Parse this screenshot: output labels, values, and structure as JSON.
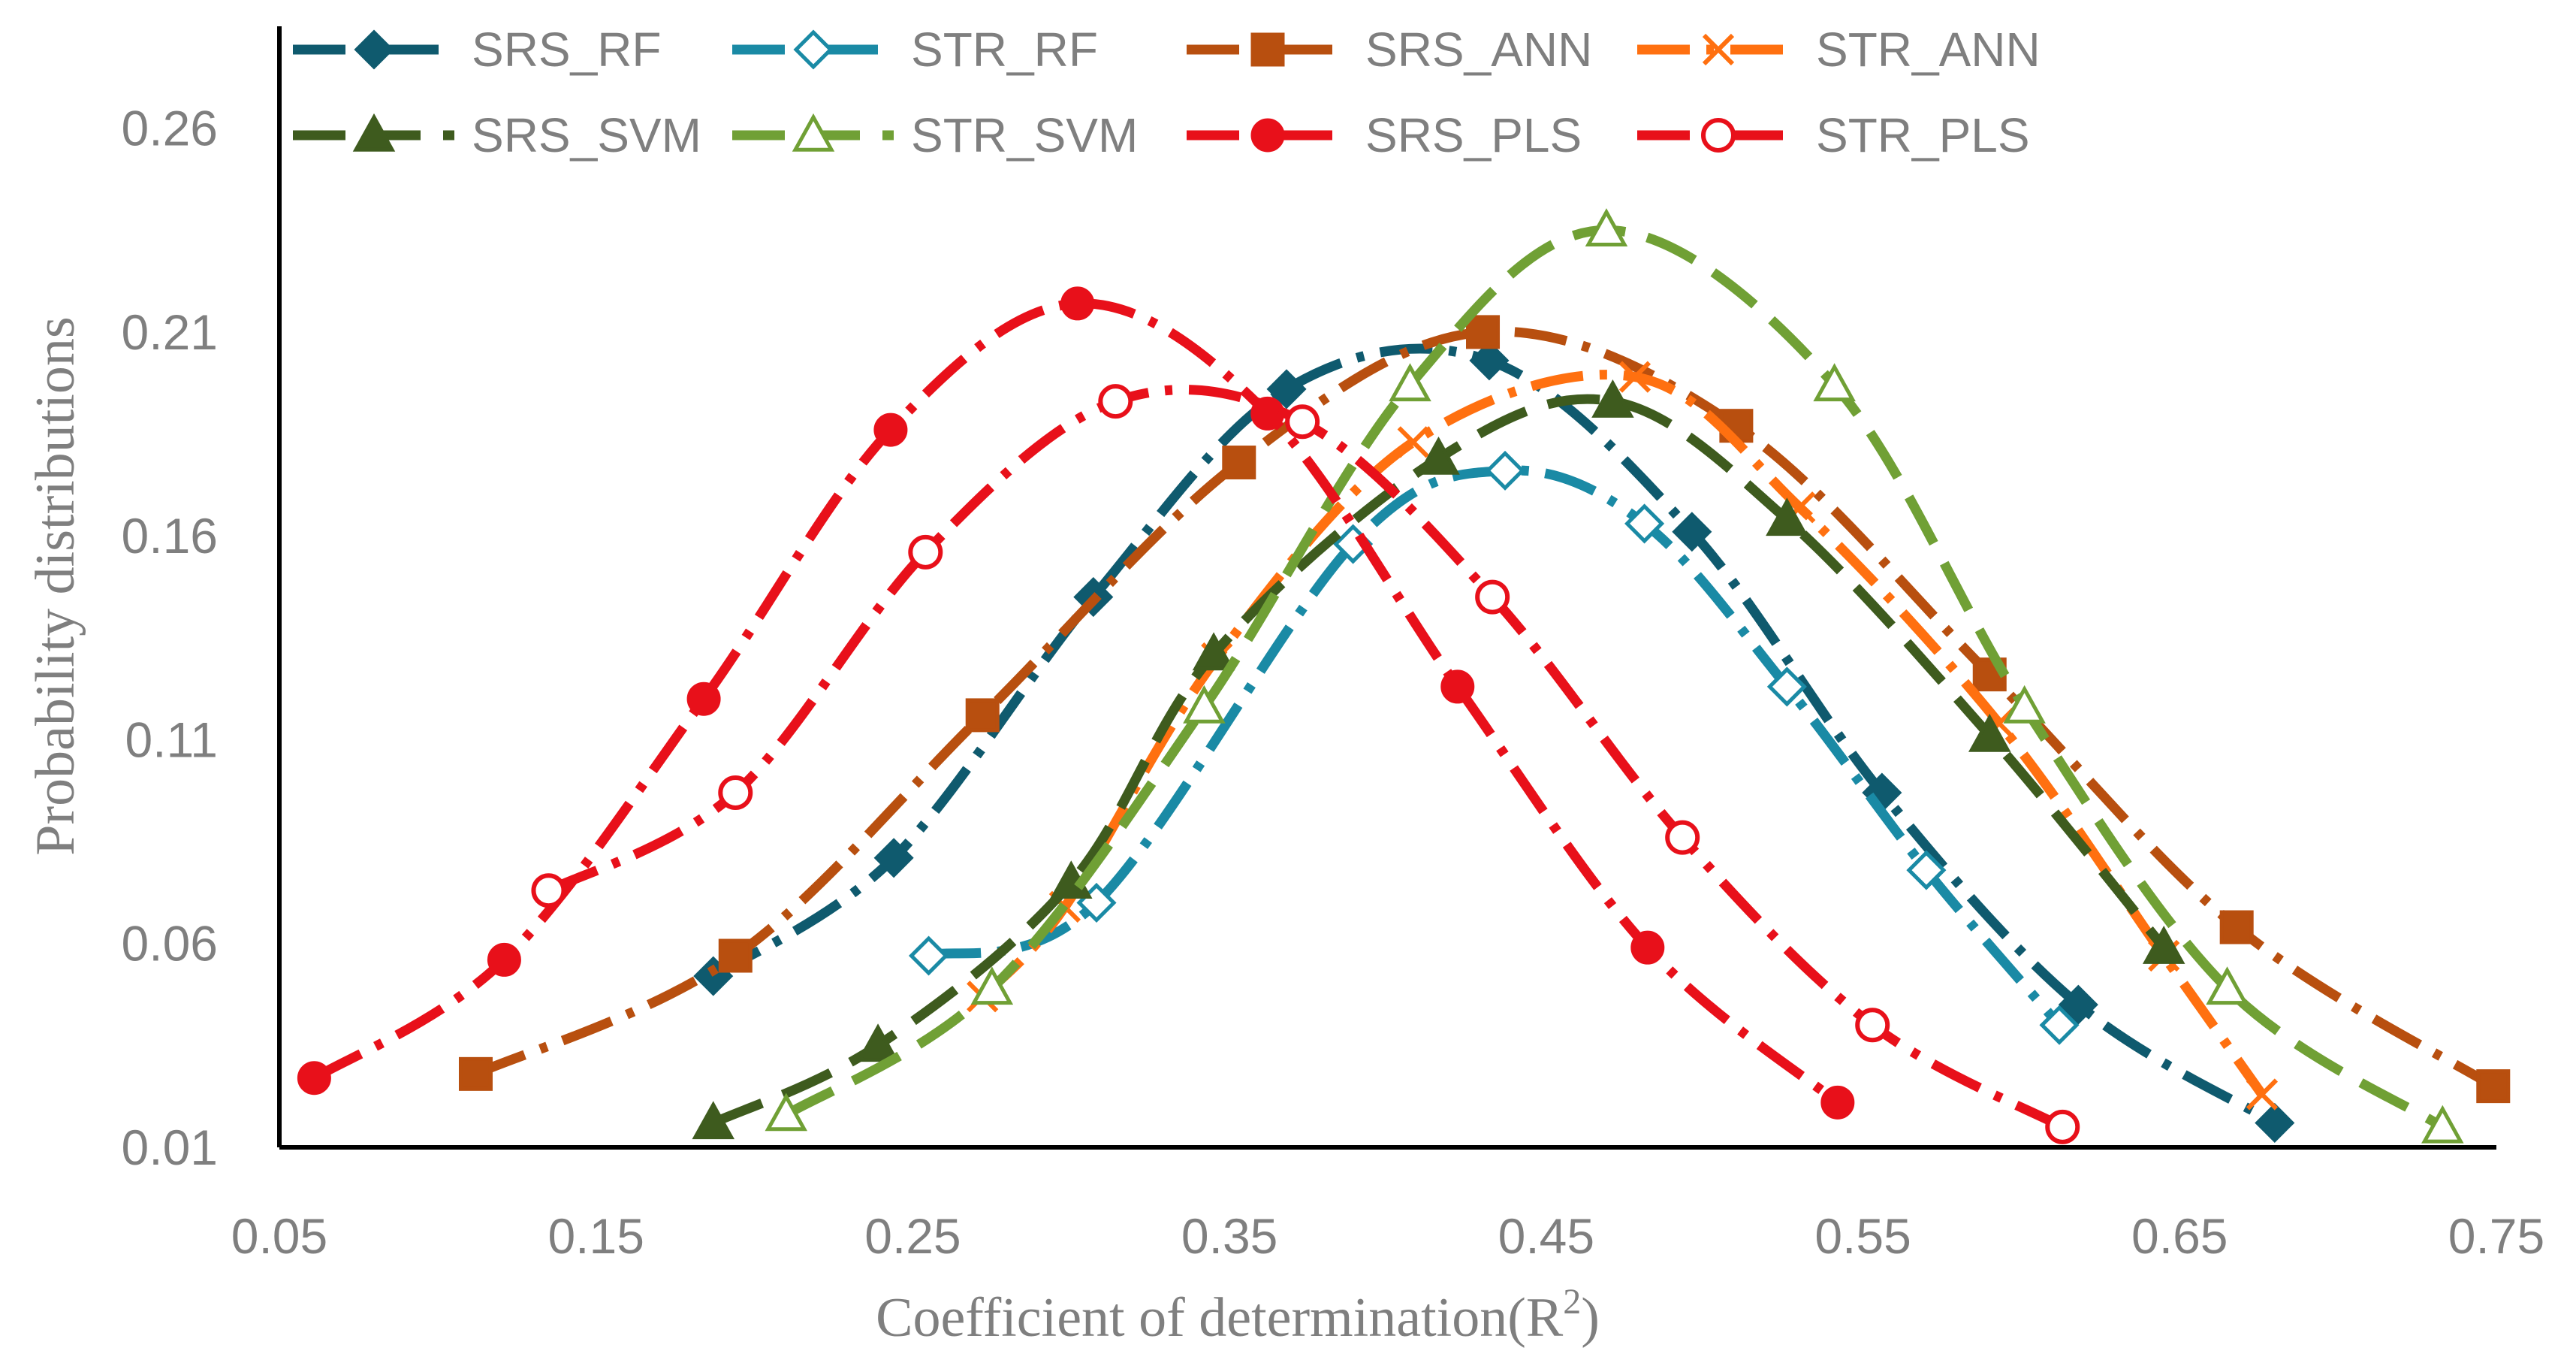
{
  "chart_data": {
    "type": "line",
    "title": "",
    "xlabel": "Coefficient of determination(R",
    "xlabel_sup": "2",
    "xlabel_close": ")",
    "ylabel": "Probability distributions",
    "xlim": [
      0.05,
      0.75
    ],
    "ylim": [
      0.01,
      0.285
    ],
    "xticks": [
      "0.05",
      "0.15",
      "0.25",
      "0.35",
      "0.45",
      "0.55",
      "0.65",
      "0.75"
    ],
    "yticks": [
      "0.01",
      "0.06",
      "0.11",
      "0.16",
      "0.21",
      "0.26"
    ],
    "grid": false,
    "legend_position": "top",
    "series": [
      {
        "name": "SRS_RF",
        "color": "#0f5a6e",
        "marker": "diamond",
        "filled": true,
        "dash": "70 22 10 22",
        "x": [
          0.187,
          0.244,
          0.307,
          0.368,
          0.432,
          0.496,
          0.556,
          0.618,
          0.68
        ],
        "y": [
          0.052,
          0.081,
          0.145,
          0.196,
          0.203,
          0.161,
          0.097,
          0.045,
          0.016
        ]
      },
      {
        "name": "STR_RF",
        "color": "#1a8aa5",
        "marker": "diamond",
        "filled": false,
        "dash": "70 22 10 22",
        "x": [
          0.255,
          0.308,
          0.389,
          0.437,
          0.481,
          0.526,
          0.57,
          0.612
        ],
        "y": [
          0.057,
          0.07,
          0.158,
          0.176,
          0.163,
          0.123,
          0.078,
          0.04
        ]
      },
      {
        "name": "SRS_ANN",
        "color": "#b84f0f",
        "marker": "square",
        "filled": true,
        "dash": "70 22 10 22",
        "x": [
          0.112,
          0.194,
          0.272,
          0.353,
          0.43,
          0.51,
          0.59,
          0.668,
          0.749
        ],
        "y": [
          0.028,
          0.057,
          0.116,
          0.178,
          0.21,
          0.187,
          0.126,
          0.064,
          0.025
        ]
      },
      {
        "name": "STR_ANN",
        "color": "#ff7010",
        "marker": "x",
        "filled": false,
        "dash": "70 22 10 22",
        "x": [
          0.272,
          0.298,
          0.346,
          0.408,
          0.478,
          0.53,
          0.593,
          0.645,
          0.676
        ],
        "y": [
          0.047,
          0.069,
          0.13,
          0.183,
          0.199,
          0.167,
          0.114,
          0.057,
          0.023
        ]
      },
      {
        "name": "SRS_SVM",
        "color": "#3e5b1e",
        "marker": "triangle",
        "filled": true,
        "dash": "70 30",
        "x": [
          0.187,
          0.239,
          0.3,
          0.345,
          0.416,
          0.471,
          0.526,
          0.59,
          0.645
        ],
        "y": [
          0.016,
          0.035,
          0.075,
          0.131,
          0.179,
          0.193,
          0.164,
          0.111,
          0.059
        ]
      },
      {
        "name": "STR_SVM",
        "color": "#70a035",
        "marker": "triangle",
        "filled": false,
        "dash": "70 30",
        "x": [
          0.21,
          0.275,
          0.342,
          0.407,
          0.469,
          0.541,
          0.601,
          0.665,
          0.733
        ],
        "y": [
          0.018,
          0.049,
          0.118,
          0.197,
          0.235,
          0.197,
          0.118,
          0.049,
          0.015
        ]
      },
      {
        "name": "SRS_PLS",
        "color": "#e8101a",
        "marker": "circle",
        "filled": true,
        "dash": "70 22 10 22",
        "x": [
          0.061,
          0.121,
          0.184,
          0.243,
          0.302,
          0.362,
          0.422,
          0.482,
          0.542
        ],
        "y": [
          0.027,
          0.056,
          0.12,
          0.186,
          0.217,
          0.19,
          0.123,
          0.059,
          0.021
        ]
      },
      {
        "name": "STR_PLS",
        "color": "#e8101a",
        "marker": "circle",
        "filled": false,
        "dash": "70 22 10 22",
        "x": [
          0.135,
          0.194,
          0.254,
          0.314,
          0.373,
          0.433,
          0.493,
          0.553,
          0.613
        ],
        "y": [
          0.073,
          0.097,
          0.156,
          0.193,
          0.188,
          0.145,
          0.086,
          0.04,
          0.015
        ]
      }
    ]
  }
}
